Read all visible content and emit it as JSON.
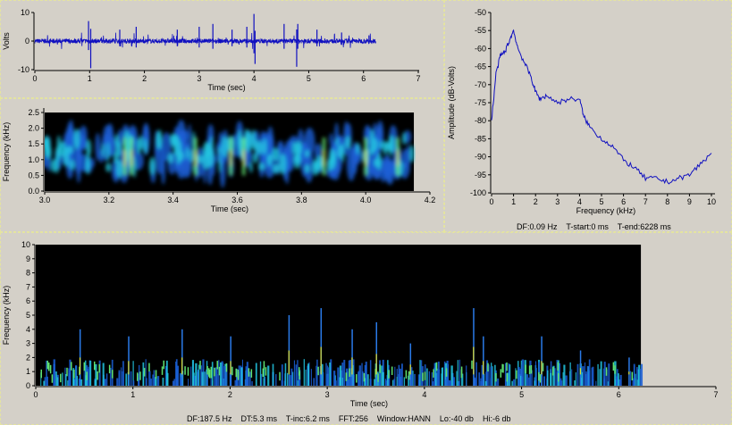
{
  "colors": {
    "background": "#d4d0c8",
    "trace": "#1010c0",
    "spec_bg": "#000000"
  },
  "chart_data": [
    {
      "type": "line",
      "name": "waveform",
      "xlabel": "Time (sec)",
      "ylabel": "Volts",
      "xlim": [
        0,
        7
      ],
      "ylim": [
        -10,
        10
      ],
      "xticks": [
        0,
        1,
        2,
        3,
        4,
        5,
        6,
        7
      ],
      "yticks": [
        10,
        0,
        -10
      ],
      "duration_sec": 6.228,
      "spikes": [
        [
          0.98,
          7
        ],
        [
          1.02,
          -9.5
        ],
        [
          1.55,
          4
        ],
        [
          1.85,
          5
        ],
        [
          2.6,
          4
        ],
        [
          3.0,
          5
        ],
        [
          3.25,
          6
        ],
        [
          3.6,
          4
        ],
        [
          3.87,
          5
        ],
        [
          4.0,
          9.5
        ],
        [
          4.02,
          -8
        ],
        [
          4.55,
          6
        ],
        [
          4.78,
          -9
        ],
        [
          4.8,
          6
        ],
        [
          5.15,
          4
        ],
        [
          5.6,
          3
        ],
        [
          6.1,
          2
        ]
      ]
    },
    {
      "type": "heatmap",
      "name": "spectrogram-zoom",
      "xlabel": "Time (sec)",
      "ylabel": "Frequency (kHz)",
      "xlim": [
        3.0,
        4.2
      ],
      "ylim": [
        0,
        2.5
      ],
      "xticks": [
        "3.0",
        "3.2",
        "3.4",
        "3.6",
        "3.8",
        "4.0",
        "4.2"
      ],
      "yticks": [
        "2.5",
        "2.0",
        "1.5",
        "1.0",
        "0.5",
        "0.0"
      ],
      "data_end_sec": 4.15,
      "bright_bands_sec": [
        3.25,
        3.27,
        3.47,
        3.58,
        3.62,
        3.87,
        4.0,
        4.1
      ]
    },
    {
      "type": "line",
      "name": "spectrum",
      "xlabel": "Frequency (kHz)",
      "ylabel": "Amplitude (dB-Volts)",
      "xlim": [
        0,
        10
      ],
      "ylim": [
        -100,
        -50
      ],
      "xticks": [
        0,
        1,
        2,
        3,
        4,
        5,
        6,
        7,
        8,
        9,
        10
      ],
      "yticks": [
        -50,
        -55,
        -60,
        -65,
        -70,
        -75,
        -80,
        -85,
        -90,
        -95,
        -100
      ],
      "x": [
        0,
        0.2,
        0.4,
        0.6,
        0.8,
        1.0,
        1.2,
        1.5,
        1.8,
        2.0,
        2.2,
        2.5,
        3.0,
        3.5,
        4.0,
        4.2,
        4.5,
        5.0,
        5.5,
        6.0,
        6.5,
        7.0,
        7.5,
        8.0,
        8.5,
        9.0,
        9.5,
        10.0
      ],
      "y": [
        -80,
        -67,
        -62,
        -61,
        -58,
        -55,
        -60,
        -64,
        -68,
        -72,
        -74,
        -73,
        -75,
        -74,
        -74,
        -79,
        -82,
        -85,
        -87,
        -91,
        -93,
        -96,
        -96,
        -97,
        -96,
        -95,
        -92,
        -89
      ]
    },
    {
      "type": "heatmap",
      "name": "spectrogram-full",
      "xlabel": "Time (sec)",
      "ylabel": "Frequency (kHz)",
      "xlim": [
        0,
        7
      ],
      "ylim": [
        0,
        10
      ],
      "xticks": [
        0,
        1,
        2,
        3,
        4,
        5,
        6,
        7
      ],
      "yticks": [
        10,
        9,
        8,
        7,
        6,
        5,
        4,
        3,
        2,
        1,
        0
      ],
      "data_end_sec": 6.228,
      "tall_streaks": [
        [
          0.45,
          4
        ],
        [
          0.95,
          3.5
        ],
        [
          1.5,
          4
        ],
        [
          2.0,
          3.5
        ],
        [
          2.6,
          5
        ],
        [
          2.93,
          5.5
        ],
        [
          3.25,
          4
        ],
        [
          3.5,
          4.5
        ],
        [
          3.85,
          3
        ],
        [
          4.5,
          5.5
        ],
        [
          4.6,
          3.5
        ],
        [
          5.2,
          3.5
        ],
        [
          5.6,
          2.5
        ],
        [
          6.1,
          2
        ]
      ]
    }
  ],
  "spectrum_info": "DF:0.09 Hz    T-start:0 ms    T-end:6228 ms",
  "footer_info": "DF:187.5 Hz    DT:5.3 ms    T-inc:6.2 ms    FFT:256    Window:HANN    Lo:-40 db    Hi:-6 db"
}
